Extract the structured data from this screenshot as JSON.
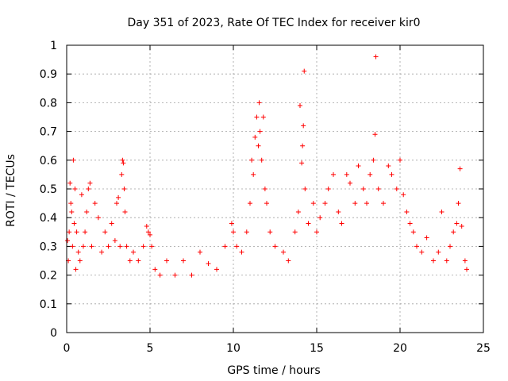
{
  "chart_data": {
    "type": "scatter",
    "title": "Day 351 of 2023, Rate Of TEC Index for receiver kir0",
    "xlabel": "GPS time / hours",
    "ylabel": "ROTI / TECUs",
    "xlim": [
      0,
      25
    ],
    "ylim": [
      0,
      1
    ],
    "xticks": [
      0,
      5,
      10,
      15,
      20,
      25
    ],
    "yticks": [
      0,
      0.1,
      0.2,
      0.3,
      0.4,
      0.5,
      0.6,
      0.7,
      0.8,
      0.9,
      1
    ],
    "grid": true,
    "marker": "+",
    "color": "#ff0000",
    "series": [
      {
        "points": [
          [
            0.05,
            0.32
          ],
          [
            0.1,
            0.25
          ],
          [
            0.15,
            0.35
          ],
          [
            0.2,
            0.52
          ],
          [
            0.25,
            0.45
          ],
          [
            0.3,
            0.42
          ],
          [
            0.35,
            0.3
          ],
          [
            0.4,
            0.6
          ],
          [
            0.45,
            0.38
          ],
          [
            0.5,
            0.5
          ],
          [
            0.55,
            0.22
          ],
          [
            0.6,
            0.35
          ],
          [
            0.7,
            0.28
          ],
          [
            0.8,
            0.25
          ],
          [
            0.9,
            0.48
          ],
          [
            1.0,
            0.3
          ],
          [
            1.1,
            0.35
          ],
          [
            1.2,
            0.42
          ],
          [
            1.3,
            0.5
          ],
          [
            1.4,
            0.52
          ],
          [
            1.5,
            0.3
          ],
          [
            1.7,
            0.45
          ],
          [
            1.9,
            0.4
          ],
          [
            2.1,
            0.28
          ],
          [
            2.3,
            0.35
          ],
          [
            2.5,
            0.3
          ],
          [
            2.7,
            0.38
          ],
          [
            2.9,
            0.32
          ],
          [
            3.0,
            0.45
          ],
          [
            3.1,
            0.47
          ],
          [
            3.2,
            0.3
          ],
          [
            3.3,
            0.55
          ],
          [
            3.35,
            0.6
          ],
          [
            3.4,
            0.59
          ],
          [
            3.45,
            0.5
          ],
          [
            3.5,
            0.42
          ],
          [
            3.6,
            0.3
          ],
          [
            3.8,
            0.25
          ],
          [
            4.0,
            0.28
          ],
          [
            4.3,
            0.25
          ],
          [
            4.6,
            0.3
          ],
          [
            4.8,
            0.37
          ],
          [
            4.9,
            0.35
          ],
          [
            5.0,
            0.34
          ],
          [
            5.1,
            0.3
          ],
          [
            5.3,
            0.22
          ],
          [
            5.6,
            0.2
          ],
          [
            6.0,
            0.25
          ],
          [
            6.5,
            0.2
          ],
          [
            7.0,
            0.25
          ],
          [
            7.5,
            0.2
          ],
          [
            8.0,
            0.28
          ],
          [
            8.5,
            0.24
          ],
          [
            9.0,
            0.22
          ],
          [
            9.5,
            0.3
          ],
          [
            9.9,
            0.38
          ],
          [
            10.0,
            0.35
          ],
          [
            10.2,
            0.3
          ],
          [
            10.5,
            0.28
          ],
          [
            10.8,
            0.35
          ],
          [
            11.0,
            0.45
          ],
          [
            11.1,
            0.6
          ],
          [
            11.2,
            0.55
          ],
          [
            11.3,
            0.68
          ],
          [
            11.4,
            0.75
          ],
          [
            11.5,
            0.65
          ],
          [
            11.55,
            0.8
          ],
          [
            11.6,
            0.7
          ],
          [
            11.7,
            0.6
          ],
          [
            11.8,
            0.75
          ],
          [
            11.9,
            0.5
          ],
          [
            12.0,
            0.45
          ],
          [
            12.2,
            0.35
          ],
          [
            12.5,
            0.3
          ],
          [
            13.0,
            0.28
          ],
          [
            13.3,
            0.25
          ],
          [
            13.7,
            0.35
          ],
          [
            13.9,
            0.42
          ],
          [
            14.0,
            0.79
          ],
          [
            14.1,
            0.59
          ],
          [
            14.15,
            0.65
          ],
          [
            14.2,
            0.72
          ],
          [
            14.25,
            0.91
          ],
          [
            14.3,
            0.5
          ],
          [
            14.5,
            0.38
          ],
          [
            14.8,
            0.45
          ],
          [
            15.0,
            0.35
          ],
          [
            15.2,
            0.4
          ],
          [
            15.5,
            0.45
          ],
          [
            15.7,
            0.5
          ],
          [
            16.0,
            0.55
          ],
          [
            16.3,
            0.42
          ],
          [
            16.5,
            0.38
          ],
          [
            16.8,
            0.55
          ],
          [
            17.0,
            0.52
          ],
          [
            17.3,
            0.45
          ],
          [
            17.5,
            0.58
          ],
          [
            17.8,
            0.5
          ],
          [
            18.0,
            0.45
          ],
          [
            18.2,
            0.55
          ],
          [
            18.4,
            0.6
          ],
          [
            18.5,
            0.69
          ],
          [
            18.55,
            0.96
          ],
          [
            18.7,
            0.5
          ],
          [
            19.0,
            0.45
          ],
          [
            19.3,
            0.58
          ],
          [
            19.5,
            0.55
          ],
          [
            19.8,
            0.5
          ],
          [
            20.0,
            0.6
          ],
          [
            20.2,
            0.48
          ],
          [
            20.4,
            0.42
          ],
          [
            20.6,
            0.38
          ],
          [
            20.8,
            0.35
          ],
          [
            21.0,
            0.3
          ],
          [
            21.3,
            0.28
          ],
          [
            21.6,
            0.33
          ],
          [
            22.0,
            0.25
          ],
          [
            22.3,
            0.28
          ],
          [
            22.5,
            0.42
          ],
          [
            22.8,
            0.25
          ],
          [
            23.0,
            0.3
          ],
          [
            23.2,
            0.35
          ],
          [
            23.4,
            0.38
          ],
          [
            23.5,
            0.45
          ],
          [
            23.6,
            0.57
          ],
          [
            23.7,
            0.37
          ],
          [
            23.9,
            0.25
          ],
          [
            24.0,
            0.22
          ]
        ]
      }
    ]
  }
}
